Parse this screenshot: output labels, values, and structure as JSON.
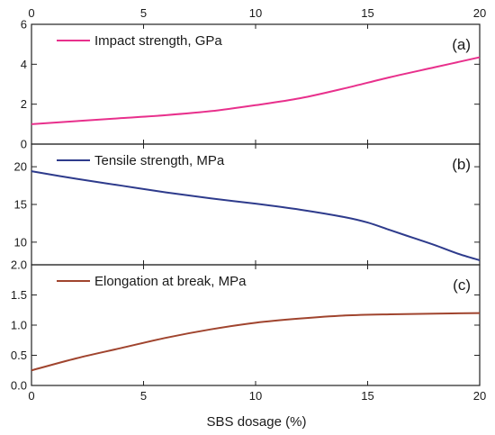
{
  "chart_data": [
    {
      "type": "line",
      "panel_tag": "(a)",
      "x": [
        0,
        2,
        4,
        6,
        8,
        10,
        12,
        14,
        16,
        18,
        20
      ],
      "xticks": [
        "0",
        "5",
        "10",
        "15",
        "20"
      ],
      "xlim": [
        0,
        20
      ],
      "ylim": [
        0,
        6
      ],
      "yticks": [
        "0",
        "2",
        "4",
        "6"
      ],
      "series": [
        {
          "name": "Impact strength, GPa",
          "color": "#e8308c",
          "values": [
            1.0,
            1.15,
            1.3,
            1.45,
            1.65,
            1.95,
            2.3,
            2.8,
            3.35,
            3.85,
            4.35
          ]
        }
      ],
      "legend": "top-left"
    },
    {
      "type": "line",
      "panel_tag": "(b)",
      "x": [
        0,
        2,
        4,
        6,
        8,
        10,
        12,
        14,
        15,
        16,
        17,
        18,
        19,
        20
      ],
      "xlim": [
        0,
        20
      ],
      "ylim": [
        7,
        23
      ],
      "yticks": [
        "10",
        "15",
        "20"
      ],
      "series": [
        {
          "name": "Tensile strength, MPa",
          "color": "#2e3b8c",
          "values": [
            19.4,
            18.4,
            17.5,
            16.6,
            15.8,
            15.1,
            14.3,
            13.3,
            12.6,
            11.6,
            10.6,
            9.6,
            8.5,
            7.6
          ]
        }
      ],
      "legend": "top-left"
    },
    {
      "type": "line",
      "panel_tag": "(c)",
      "x": [
        0,
        2,
        4,
        6,
        8,
        10,
        12,
        14,
        16,
        18,
        20
      ],
      "xticks": [
        "0",
        "5",
        "10",
        "15",
        "20"
      ],
      "xlim": [
        0,
        20
      ],
      "ylim": [
        0,
        2.0
      ],
      "yticks": [
        "0.0",
        "0.5",
        "1.0",
        "1.5",
        "2.0"
      ],
      "xlabel": "SBS dosage (%)",
      "series": [
        {
          "name": "Elongation at break, MPa",
          "color": "#a0442e",
          "values": [
            0.25,
            0.45,
            0.62,
            0.79,
            0.93,
            1.04,
            1.11,
            1.16,
            1.18,
            1.19,
            1.2
          ]
        }
      ],
      "legend": "top-left"
    }
  ]
}
